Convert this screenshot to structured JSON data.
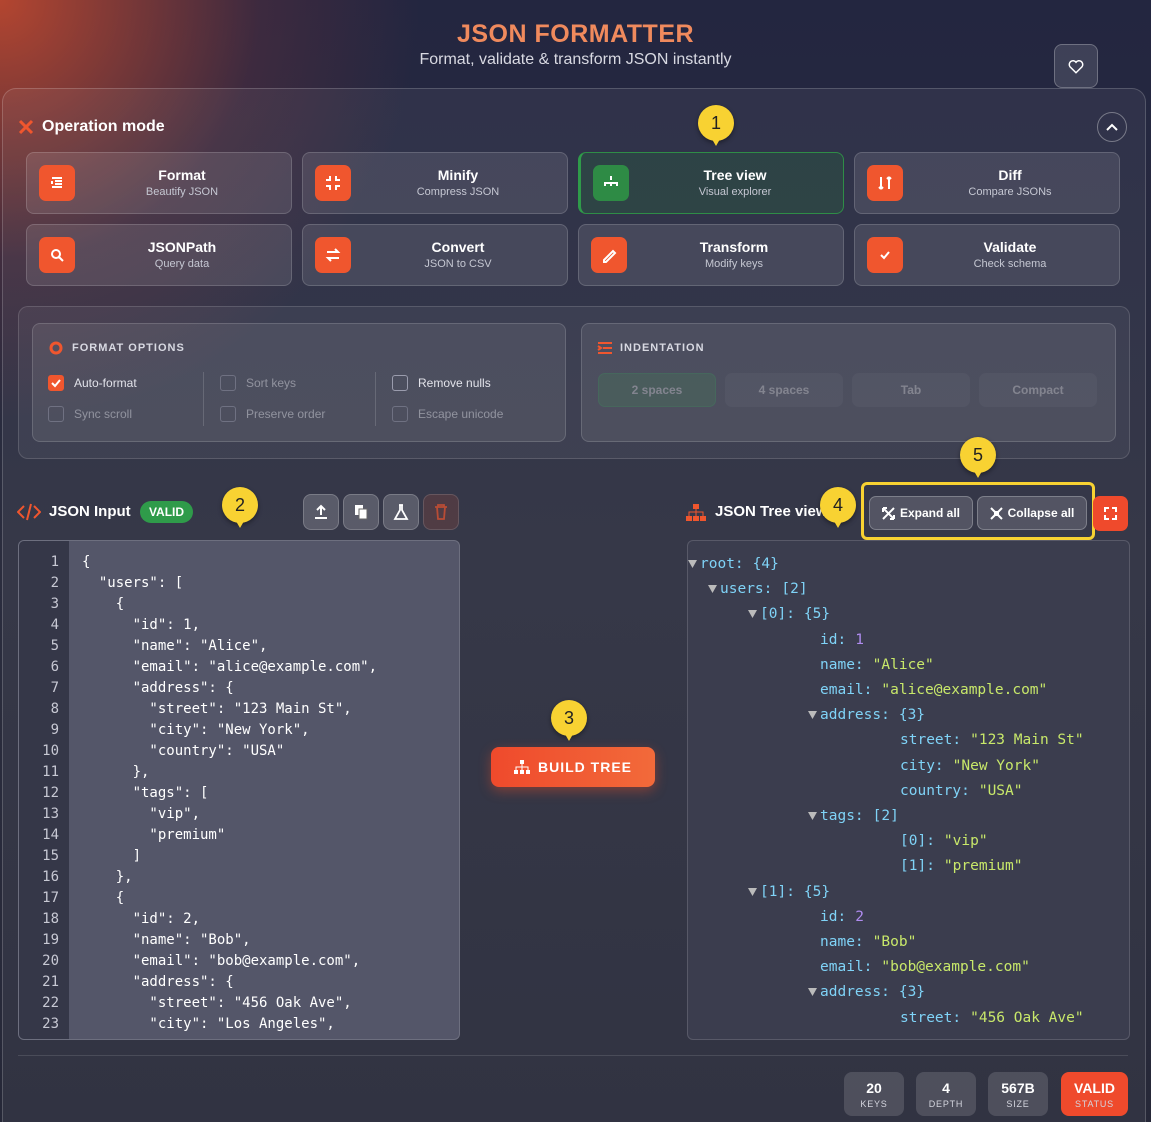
{
  "header": {
    "title": "JSON FORMATTER",
    "subtitle": "Format, validate & transform JSON instantly"
  },
  "operation_mode": {
    "title": "Operation mode",
    "modes": [
      {
        "name": "Format",
        "description": "Beautify JSON",
        "active": false
      },
      {
        "name": "Minify",
        "description": "Compress JSON",
        "active": false
      },
      {
        "name": "Tree view",
        "description": "Visual explorer",
        "active": true
      },
      {
        "name": "Diff",
        "description": "Compare JSONs",
        "active": false
      },
      {
        "name": "JSONPath",
        "description": "Query data",
        "active": false
      },
      {
        "name": "Convert",
        "description": "JSON to CSV",
        "active": false
      },
      {
        "name": "Transform",
        "description": "Modify keys",
        "active": false
      },
      {
        "name": "Validate",
        "description": "Check schema",
        "active": false
      }
    ]
  },
  "format_options": {
    "title": "FORMAT OPTIONS",
    "options": [
      {
        "label": "Auto-format",
        "checked": true,
        "disabled": false
      },
      {
        "label": "Sort keys",
        "checked": false,
        "disabled": true
      },
      {
        "label": "Remove nulls",
        "checked": false,
        "disabled": false
      },
      {
        "label": "Sync scroll",
        "checked": false,
        "disabled": true
      },
      {
        "label": "Preserve order",
        "checked": false,
        "disabled": true
      },
      {
        "label": "Escape unicode",
        "checked": false,
        "disabled": true
      }
    ]
  },
  "indentation": {
    "title": "INDENTATION",
    "options": [
      {
        "label": "2 spaces",
        "selected": true
      },
      {
        "label": "4 spaces",
        "selected": false
      },
      {
        "label": "Tab",
        "selected": false
      },
      {
        "label": "Compact",
        "selected": false
      }
    ]
  },
  "input": {
    "title": "JSON Input",
    "badge": "VALID",
    "lines": [
      {
        "number": 1,
        "text": "{"
      },
      {
        "number": 2,
        "text": "  \"users\": ["
      },
      {
        "number": 3,
        "text": "    {"
      },
      {
        "number": 4,
        "text": "      \"id\": 1,"
      },
      {
        "number": 5,
        "text": "      \"name\": \"Alice\","
      },
      {
        "number": 6,
        "text": "      \"email\": \"alice@example.com\","
      },
      {
        "number": 7,
        "text": "      \"address\": {"
      },
      {
        "number": 8,
        "text": "        \"street\": \"123 Main St\","
      },
      {
        "number": 9,
        "text": "        \"city\": \"New York\","
      },
      {
        "number": 10,
        "text": "        \"country\": \"USA\""
      },
      {
        "number": 11,
        "text": "      },"
      },
      {
        "number": 12,
        "text": "      \"tags\": ["
      },
      {
        "number": 13,
        "text": "        \"vip\","
      },
      {
        "number": 14,
        "text": "        \"premium\""
      },
      {
        "number": 15,
        "text": "      ]"
      },
      {
        "number": 16,
        "text": "    },"
      },
      {
        "number": 17,
        "text": "    {"
      },
      {
        "number": 18,
        "text": "      \"id\": 2,"
      },
      {
        "number": 19,
        "text": "      \"name\": \"Bob\","
      },
      {
        "number": 20,
        "text": "      \"email\": \"bob@example.com\","
      },
      {
        "number": 21,
        "text": "      \"address\": {"
      },
      {
        "number": 22,
        "text": "        \"street\": \"456 Oak Ave\","
      },
      {
        "number": 23,
        "text": "        \"city\": \"Los Angeles\","
      }
    ]
  },
  "build_button": "BUILD TREE",
  "tree": {
    "title": "JSON Tree view",
    "expand": "Expand all",
    "collapse": "Collapse all",
    "rows": [
      {
        "key": "root:",
        "value": "{4}"
      },
      {
        "key": "users:",
        "value": "[2]"
      },
      {
        "key": "[0]:",
        "value": "{5}"
      },
      {
        "key": "id:",
        "value": 1
      },
      {
        "key": "name:",
        "value": "\"Alice\""
      },
      {
        "key": "email:",
        "value": "\"alice@example.com\""
      },
      {
        "key": "address:",
        "value": "{3}"
      },
      {
        "key": "street:",
        "value": "\"123 Main St\""
      },
      {
        "key": "city:",
        "value": "\"New York\""
      },
      {
        "key": "country:",
        "value": "\"USA\""
      },
      {
        "key": "tags:",
        "value": "[2]"
      },
      {
        "key": "[0]:",
        "value": "\"vip\""
      },
      {
        "key": "[1]:",
        "value": "\"premium\""
      },
      {
        "key": "[1]:",
        "value": "{5}"
      },
      {
        "key": "id:",
        "value": 2
      },
      {
        "key": "name:",
        "value": "\"Bob\""
      },
      {
        "key": "email:",
        "value": "\"bob@example.com\""
      },
      {
        "key": "address:",
        "value": "{3}"
      },
      {
        "key": "street:",
        "value": "\"456 Oak Ave\""
      }
    ]
  },
  "stats": [
    {
      "value": 20,
      "label": "KEYS"
    },
    {
      "value": 4,
      "label": "DEPTH"
    },
    {
      "value": "567B",
      "label": "SIZE"
    },
    {
      "value": "VALID",
      "label": "STATUS"
    }
  ],
  "annotations": [
    1,
    2,
    3,
    4,
    5
  ]
}
